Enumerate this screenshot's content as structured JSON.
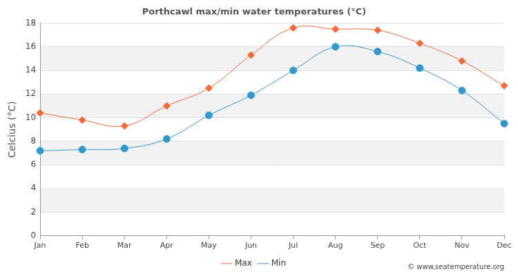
{
  "chart_data": {
    "type": "line",
    "title": "Porthcawl max/min water temperatures (°C)",
    "y_label": "Celcius (°C)",
    "annotations": [
      "© www.seatemperature.org"
    ],
    "categories": [
      "Jan",
      "Feb",
      "Mar",
      "Apr",
      "May",
      "Jun",
      "Jul",
      "Aug",
      "Sep",
      "Oct",
      "Nov",
      "Dec"
    ],
    "series": [
      {
        "name": "Max",
        "color": "#f4683a",
        "marker": "diamond",
        "values": [
          10.4,
          9.8,
          9.3,
          11.0,
          12.5,
          15.3,
          17.6,
          17.5,
          17.4,
          16.3,
          14.8,
          12.7
        ]
      },
      {
        "name": "Min",
        "color": "#3399cc",
        "marker": "circle",
        "values": [
          7.2,
          7.3,
          7.4,
          8.2,
          10.2,
          11.9,
          14.0,
          16.0,
          15.6,
          14.2,
          12.3,
          9.5
        ]
      }
    ],
    "ylim": [
      0,
      18
    ],
    "yticks": [
      0,
      2,
      4,
      6,
      8,
      10,
      12,
      14,
      16,
      18
    ],
    "grid": true,
    "legend": "bottom"
  }
}
